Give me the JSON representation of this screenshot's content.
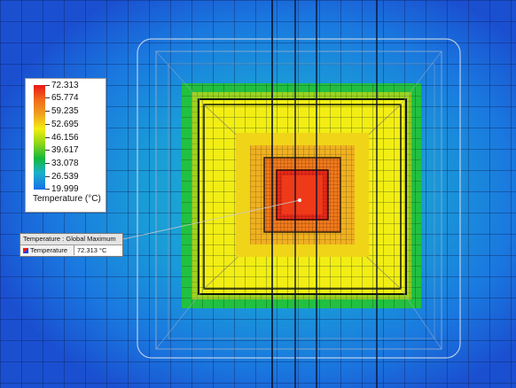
{
  "legend": {
    "ticks": [
      "72.313",
      "65.774",
      "59.235",
      "52.695",
      "46.156",
      "39.617",
      "33.078",
      "26.539",
      "19.999"
    ],
    "title": "Temperature (°C)"
  },
  "probe": {
    "header": "Temperature : Global Maximum",
    "name": "Temperature",
    "value": "72.313 °C"
  },
  "colors": {
    "background": "#1a4fd0",
    "hot": "#e81818",
    "warm": "#f2ee10",
    "mid": "#16b83a",
    "cool": "#1ab0c8",
    "cold": "#1870e8"
  }
}
